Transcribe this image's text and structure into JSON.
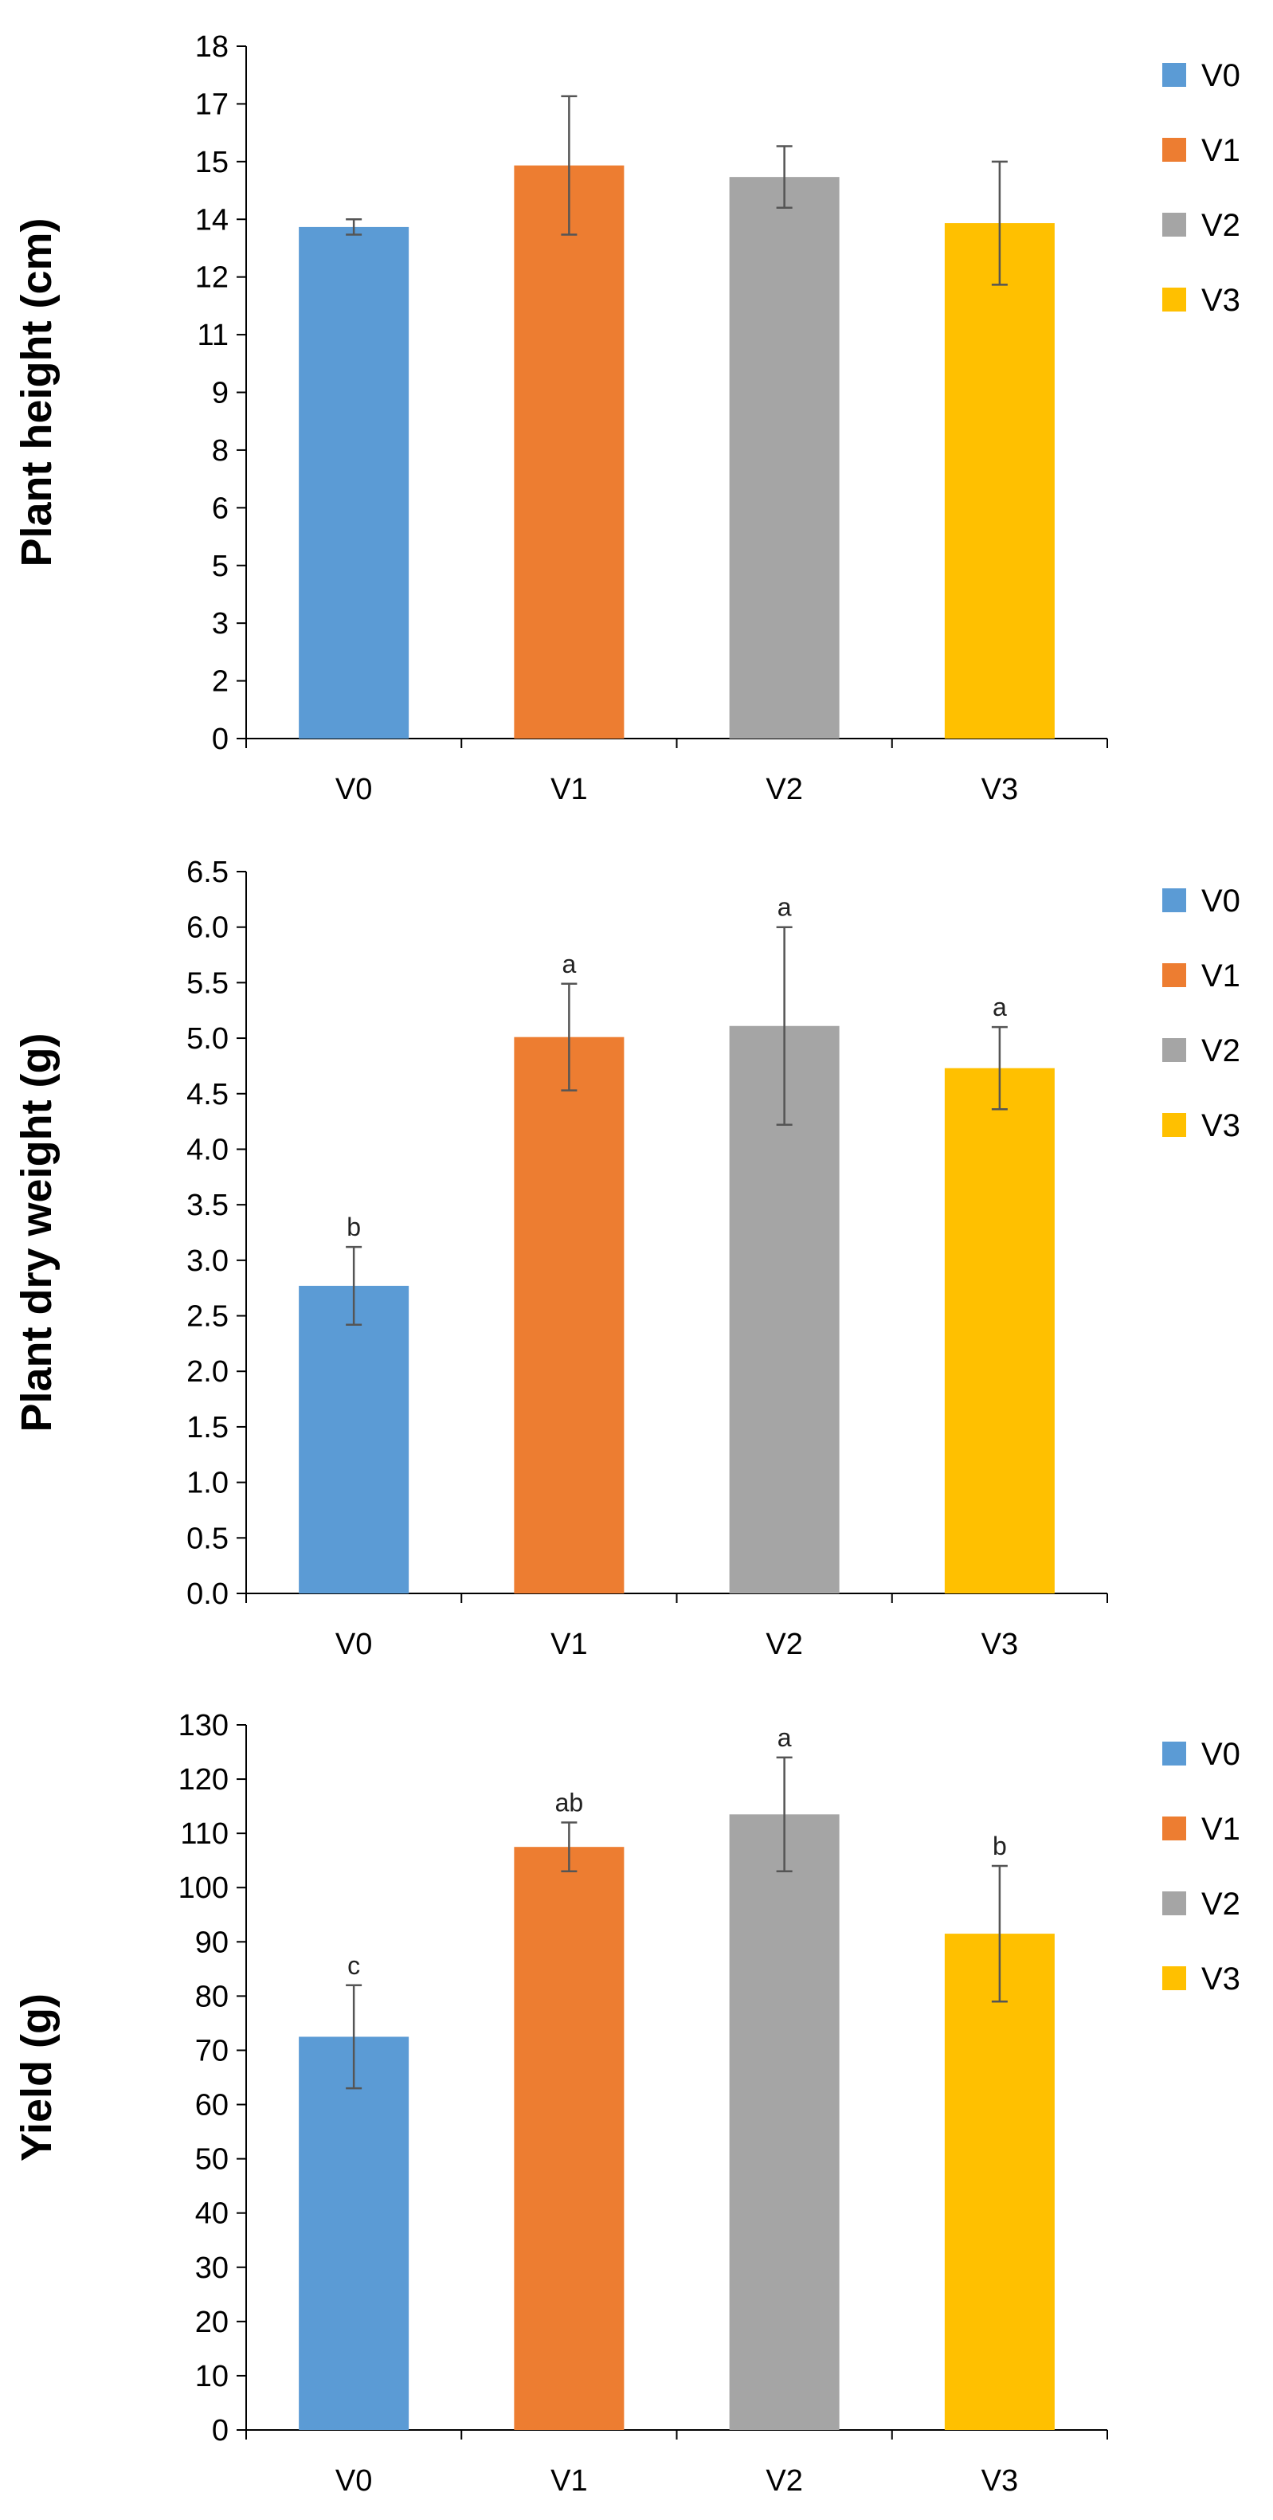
{
  "colors": {
    "V0": "#5B9BD5",
    "V1": "#ED7D31",
    "V2": "#A5A5A5",
    "V3": "#FFC000",
    "error_bar": "#555555",
    "axis": "#000000"
  },
  "chart_data": [
    {
      "type": "bar",
      "ylabel": "Plant height (cm)",
      "xlabel": "",
      "categories": [
        "V0",
        "V1",
        "V2",
        "V3"
      ],
      "values": [
        13.3,
        14.9,
        14.6,
        13.4
      ],
      "errors": [
        0.2,
        1.8,
        0.8,
        1.6
      ],
      "significance": [
        "",
        "",
        "",
        ""
      ],
      "ylim": [
        0,
        18
      ],
      "yticks": [
        0,
        1.5,
        3,
        4.5,
        6,
        7.5,
        9,
        10.5,
        12,
        13.5,
        15,
        16.5,
        18
      ],
      "ytick_labels": [
        "0",
        "2",
        "3",
        "5",
        "6",
        "8",
        "9",
        "11",
        "12",
        "14",
        "15",
        "17",
        "18"
      ],
      "legend": [
        "V0",
        "V1",
        "V2",
        "V3"
      ],
      "legend_position": "right",
      "grid": false
    },
    {
      "type": "bar",
      "ylabel": "Plant dry weight (g)",
      "xlabel": "",
      "categories": [
        "V0",
        "V1",
        "V2",
        "V3"
      ],
      "values": [
        2.77,
        5.01,
        5.11,
        4.73
      ],
      "errors": [
        0.35,
        0.48,
        0.89,
        0.37
      ],
      "significance": [
        "b",
        "a",
        "a",
        "a"
      ],
      "ylim": [
        0,
        6.5
      ],
      "yticks": [
        0,
        0.5,
        1,
        1.5,
        2,
        2.5,
        3,
        3.5,
        4,
        4.5,
        5,
        5.5,
        6,
        6.5
      ],
      "ytick_labels": [
        "0.0",
        "0.5",
        "1.0",
        "1.5",
        "2.0",
        "2.5",
        "3.0",
        "3.5",
        "4.0",
        "4.5",
        "5.0",
        "5.5",
        "6.0",
        "6.5"
      ],
      "legend": [
        "V0",
        "V1",
        "V2",
        "V3"
      ],
      "legend_position": "right",
      "grid": false
    },
    {
      "type": "bar",
      "ylabel": "Yield (g)",
      "xlabel": "",
      "categories": [
        "V0",
        "V1",
        "V2",
        "V3"
      ],
      "values": [
        72.5,
        107.5,
        113.5,
        91.5
      ],
      "errors": [
        9.5,
        4.5,
        10.5,
        12.5
      ],
      "significance": [
        "c",
        "ab",
        "a",
        "b"
      ],
      "ylim": [
        0,
        130
      ],
      "yticks": [
        0,
        10,
        20,
        30,
        40,
        50,
        60,
        70,
        80,
        90,
        100,
        110,
        120,
        130
      ],
      "ytick_labels": [
        "0",
        "10",
        "20",
        "30",
        "40",
        "50",
        "60",
        "70",
        "80",
        "90",
        "100",
        "110",
        "120",
        "130"
      ],
      "legend": [
        "V0",
        "V1",
        "V2",
        "V3"
      ],
      "legend_position": "right",
      "grid": false
    }
  ]
}
